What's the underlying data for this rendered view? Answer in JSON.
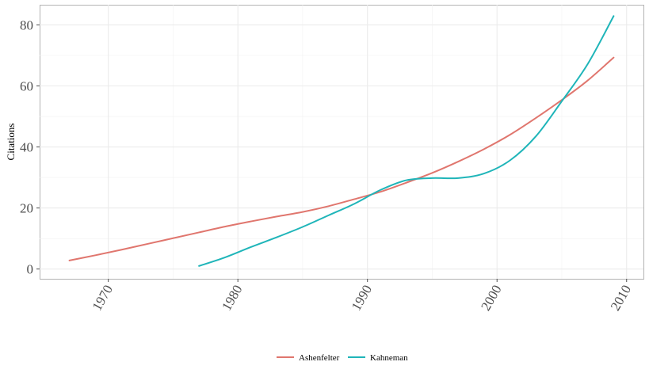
{
  "chart_data": {
    "type": "line",
    "title": "",
    "xlabel": "",
    "ylabel": "Citations",
    "xlim": [
      1964.7,
      2011.3
    ],
    "ylim": [
      -3.2,
      86.6
    ],
    "x_ticks": [
      1970,
      1980,
      1990,
      2000,
      2010
    ],
    "y_ticks": [
      0,
      20,
      40,
      60,
      80
    ],
    "grid": true,
    "legend_position": "bottom",
    "series": [
      {
        "name": "Ashenfelter",
        "color": "#E0766E",
        "x": [
          1967,
          1969,
          1971,
          1973,
          1975,
          1977,
          1979,
          1981,
          1983,
          1985,
          1987,
          1989,
          1991,
          1993,
          1995,
          1997,
          1999,
          2001,
          2003,
          2005,
          2007,
          2009
        ],
        "y": [
          2.8,
          4.5,
          6.3,
          8.2,
          10.1,
          12.0,
          13.9,
          15.6,
          17.2,
          18.7,
          20.6,
          22.9,
          25.3,
          28.3,
          31.5,
          35.2,
          39.3,
          44.0,
          49.5,
          55.4,
          61.8,
          69.3
        ]
      },
      {
        "name": "Kahneman",
        "color": "#1FB5B9",
        "x": [
          1977,
          1979,
          1981,
          1983,
          1985,
          1987,
          1989,
          1991,
          1993,
          1995,
          1997,
          1999,
          2001,
          2003,
          2005,
          2007,
          2009
        ],
        "y": [
          1.0,
          3.8,
          7.2,
          10.4,
          13.8,
          17.6,
          21.4,
          25.9,
          29.1,
          29.8,
          29.8,
          31.3,
          35.6,
          43.5,
          55.0,
          67.2,
          82.9
        ]
      }
    ]
  }
}
